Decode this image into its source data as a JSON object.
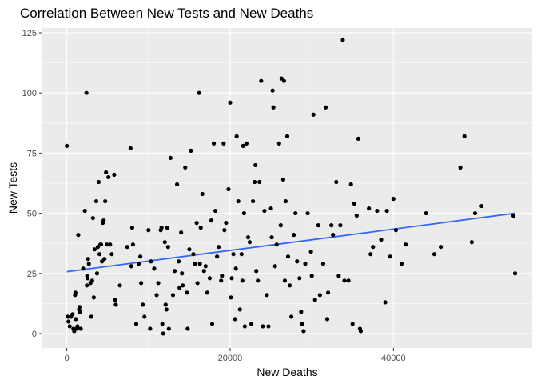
{
  "chart_data": {
    "type": "scatter",
    "title": "Correlation Between New Tests and New Deaths",
    "xlabel": "New Deaths",
    "ylabel": "New Tests",
    "xlim": [
      -3000,
      57000
    ],
    "ylim": [
      -6,
      127
    ],
    "xticks": [
      0,
      20000,
      40000
    ],
    "xtick_labels": [
      "0",
      "20000",
      "40000"
    ],
    "yticks": [
      0,
      25,
      50,
      75,
      100,
      125
    ],
    "ytick_labels": [
      "0",
      "25",
      "50",
      "75",
      "100",
      "125"
    ],
    "grid": true,
    "legend": "none",
    "points": [
      [
        0,
        78
      ],
      [
        100,
        7
      ],
      [
        200,
        5
      ],
      [
        350,
        3
      ],
      [
        500,
        7
      ],
      [
        700,
        8
      ],
      [
        800,
        2
      ],
      [
        900,
        1
      ],
      [
        1000,
        16
      ],
      [
        1050,
        17
      ],
      [
        1100,
        6
      ],
      [
        1200,
        2
      ],
      [
        1300,
        3
      ],
      [
        1400,
        41
      ],
      [
        1500,
        10
      ],
      [
        1550,
        11
      ],
      [
        1600,
        9
      ],
      [
        1700,
        2
      ],
      [
        2000,
        27
      ],
      [
        2200,
        51
      ],
      [
        2400,
        100
      ],
      [
        2450,
        20
      ],
      [
        2500,
        24
      ],
      [
        2550,
        23
      ],
      [
        2600,
        31
      ],
      [
        2700,
        29
      ],
      [
        2900,
        21
      ],
      [
        3000,
        7
      ],
      [
        3100,
        22
      ],
      [
        3200,
        48
      ],
      [
        3300,
        15
      ],
      [
        3400,
        35
      ],
      [
        3600,
        55
      ],
      [
        3700,
        25
      ],
      [
        3800,
        36
      ],
      [
        3900,
        63
      ],
      [
        4000,
        33
      ],
      [
        4100,
        37
      ],
      [
        4200,
        37
      ],
      [
        4300,
        30
      ],
      [
        4400,
        46
      ],
      [
        4500,
        47
      ],
      [
        4600,
        31
      ],
      [
        4700,
        55
      ],
      [
        4800,
        67
      ],
      [
        4900,
        37
      ],
      [
        5100,
        65
      ],
      [
        5300,
        37
      ],
      [
        5500,
        33
      ],
      [
        5800,
        66
      ],
      [
        5900,
        14
      ],
      [
        6000,
        12
      ],
      [
        6500,
        20
      ],
      [
        7400,
        36
      ],
      [
        7800,
        77
      ],
      [
        7900,
        28
      ],
      [
        8000,
        44
      ],
      [
        8100,
        37
      ],
      [
        8500,
        4
      ],
      [
        8800,
        29
      ],
      [
        9000,
        32
      ],
      [
        9100,
        21
      ],
      [
        9300,
        12
      ],
      [
        9500,
        7
      ],
      [
        10000,
        43
      ],
      [
        10200,
        2
      ],
      [
        10300,
        30
      ],
      [
        10700,
        27
      ],
      [
        11000,
        16
      ],
      [
        11200,
        21
      ],
      [
        11500,
        43
      ],
      [
        11600,
        44
      ],
      [
        11700,
        4
      ],
      [
        11800,
        0
      ],
      [
        12000,
        38
      ],
      [
        12100,
        12
      ],
      [
        12200,
        10
      ],
      [
        12300,
        44
      ],
      [
        12400,
        36
      ],
      [
        12500,
        2
      ],
      [
        12700,
        73
      ],
      [
        13000,
        16
      ],
      [
        13200,
        26
      ],
      [
        13500,
        62
      ],
      [
        13700,
        30
      ],
      [
        13800,
        19
      ],
      [
        14000,
        42
      ],
      [
        14100,
        25
      ],
      [
        14200,
        20
      ],
      [
        14500,
        69
      ],
      [
        14700,
        17
      ],
      [
        14800,
        2
      ],
      [
        15000,
        35
      ],
      [
        15200,
        76
      ],
      [
        15500,
        33
      ],
      [
        15700,
        29
      ],
      [
        15900,
        46
      ],
      [
        16000,
        21
      ],
      [
        16200,
        100
      ],
      [
        16300,
        29
      ],
      [
        16400,
        44
      ],
      [
        16600,
        58
      ],
      [
        16800,
        26
      ],
      [
        17000,
        28
      ],
      [
        17200,
        17
      ],
      [
        17500,
        23
      ],
      [
        17700,
        47
      ],
      [
        17800,
        4
      ],
      [
        18000,
        79
      ],
      [
        18200,
        51
      ],
      [
        18400,
        32
      ],
      [
        18600,
        36
      ],
      [
        18900,
        22
      ],
      [
        19000,
        24
      ],
      [
        19200,
        79
      ],
      [
        19300,
        43
      ],
      [
        19500,
        46
      ],
      [
        19800,
        60
      ],
      [
        20000,
        96
      ],
      [
        20100,
        15
      ],
      [
        20200,
        23
      ],
      [
        20400,
        33
      ],
      [
        20600,
        6
      ],
      [
        20700,
        27
      ],
      [
        20800,
        82
      ],
      [
        21000,
        55
      ],
      [
        21200,
        10
      ],
      [
        21400,
        33
      ],
      [
        21500,
        22
      ],
      [
        21600,
        78
      ],
      [
        21700,
        50
      ],
      [
        21800,
        3
      ],
      [
        22000,
        79
      ],
      [
        22200,
        40
      ],
      [
        22400,
        38
      ],
      [
        22600,
        4
      ],
      [
        22800,
        55
      ],
      [
        23000,
        63
      ],
      [
        23100,
        70
      ],
      [
        23200,
        26
      ],
      [
        23400,
        22
      ],
      [
        23600,
        63
      ],
      [
        23800,
        105
      ],
      [
        24000,
        3
      ],
      [
        24200,
        51
      ],
      [
        24500,
        16
      ],
      [
        24700,
        3
      ],
      [
        25000,
        52
      ],
      [
        25100,
        40
      ],
      [
        25200,
        101
      ],
      [
        25300,
        94
      ],
      [
        25500,
        28
      ],
      [
        25700,
        37
      ],
      [
        26000,
        79
      ],
      [
        26200,
        45
      ],
      [
        26300,
        106
      ],
      [
        26500,
        64
      ],
      [
        26600,
        105
      ],
      [
        26700,
        22
      ],
      [
        26800,
        55
      ],
      [
        27000,
        82
      ],
      [
        27100,
        32
      ],
      [
        27300,
        20
      ],
      [
        27500,
        7
      ],
      [
        27800,
        41
      ],
      [
        28000,
        50
      ],
      [
        28200,
        30
      ],
      [
        28500,
        23
      ],
      [
        28700,
        9
      ],
      [
        28800,
        4
      ],
      [
        29000,
        1
      ],
      [
        29200,
        29
      ],
      [
        29500,
        50
      ],
      [
        29900,
        34
      ],
      [
        30000,
        24
      ],
      [
        30200,
        91
      ],
      [
        30400,
        14
      ],
      [
        30800,
        45
      ],
      [
        31000,
        16
      ],
      [
        31400,
        29
      ],
      [
        31700,
        94
      ],
      [
        31900,
        6
      ],
      [
        32000,
        17
      ],
      [
        32400,
        45
      ],
      [
        32600,
        41
      ],
      [
        33000,
        63
      ],
      [
        33300,
        24
      ],
      [
        33500,
        45
      ],
      [
        33800,
        122
      ],
      [
        34000,
        22
      ],
      [
        34500,
        22
      ],
      [
        34800,
        62
      ],
      [
        35000,
        4
      ],
      [
        35200,
        54
      ],
      [
        35500,
        49
      ],
      [
        35700,
        81
      ],
      [
        35900,
        2
      ],
      [
        36000,
        1
      ],
      [
        37000,
        52
      ],
      [
        37200,
        33
      ],
      [
        37500,
        36
      ],
      [
        38000,
        51
      ],
      [
        38500,
        39
      ],
      [
        39000,
        13
      ],
      [
        39200,
        51
      ],
      [
        39600,
        32
      ],
      [
        40000,
        56
      ],
      [
        40300,
        43
      ],
      [
        41000,
        29
      ],
      [
        41500,
        37
      ],
      [
        44000,
        50
      ],
      [
        45000,
        33
      ],
      [
        45800,
        36
      ],
      [
        48200,
        69
      ],
      [
        48700,
        82
      ],
      [
        49600,
        38
      ],
      [
        50000,
        50
      ],
      [
        50800,
        53
      ],
      [
        54700,
        49
      ],
      [
        54900,
        25
      ]
    ],
    "trend_line": {
      "x": [
        0,
        54900
      ],
      "y": [
        25.7,
        50.0
      ]
    },
    "colors": {
      "panel_background": "#ebebeb",
      "grid_major": "#ffffff",
      "point": "#000000",
      "trend": "#3366ff",
      "tick_text": "#4d4d4d"
    }
  }
}
